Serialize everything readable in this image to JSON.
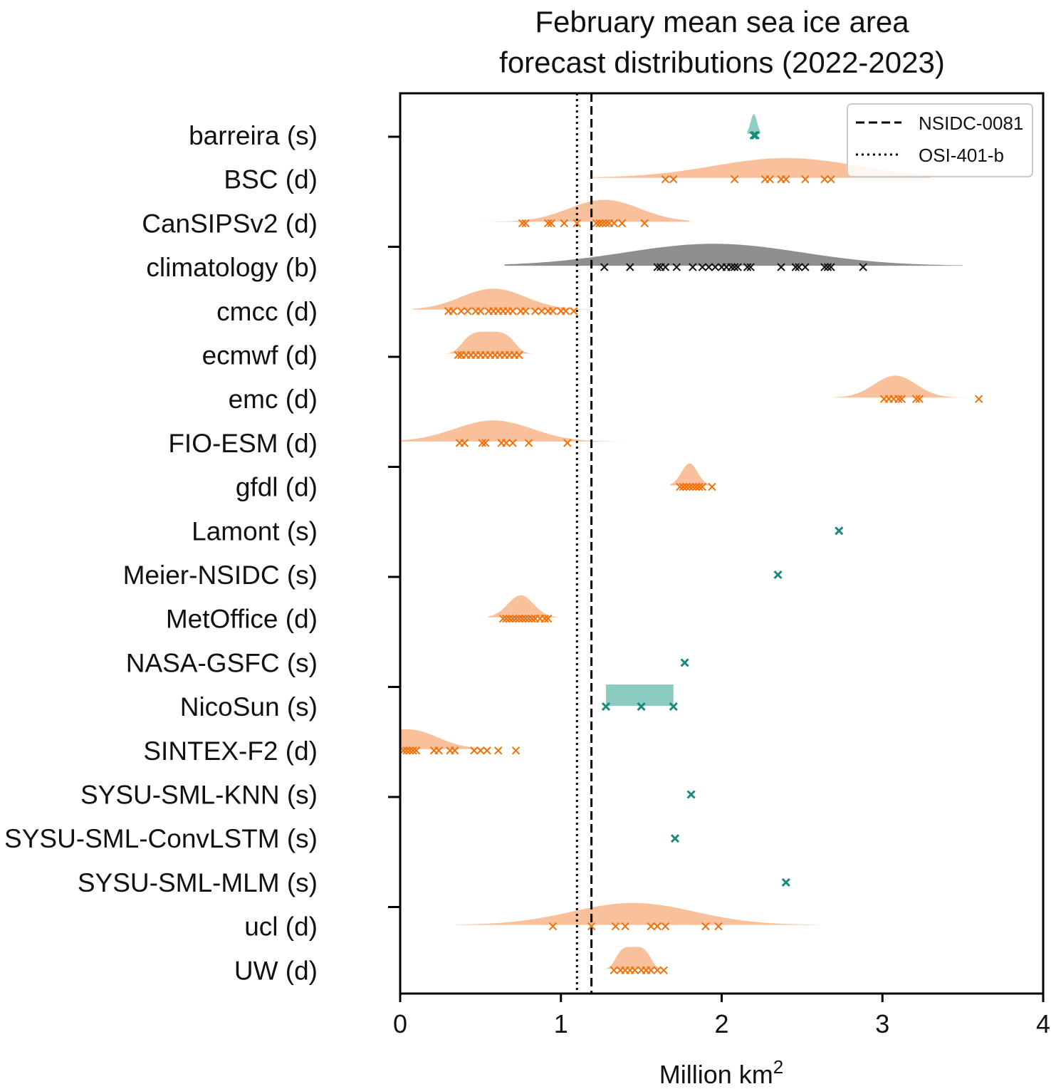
{
  "chart_data": {
    "type": "violin",
    "title_line1": "February mean sea ice area",
    "title_line2": "forecast distributions (2022-2023)",
    "xlabel": "Million km",
    "xlabel_sup": "2",
    "xlim": [
      0,
      4
    ],
    "xticks": [
      "0",
      "1",
      "2",
      "3",
      "4"
    ],
    "xtick_values": [
      0,
      1,
      2,
      3,
      4
    ],
    "reference_lines": [
      {
        "name": "NSIDC-0081",
        "x": 1.19,
        "style": "dashed"
      },
      {
        "name": "OSI-401-b",
        "x": 1.1,
        "style": "dotted"
      }
    ],
    "legend_position": "top-right",
    "colors": {
      "dynamical_fill": "#f9be96",
      "dynamical_marker": "#f0700a",
      "statistical_fill": "#8ccbc1",
      "statistical_marker": "#1a8a7c",
      "baseline_fill": "#8f8f8f",
      "baseline_marker": "#111111"
    },
    "series": [
      {
        "name": "barreira (s)",
        "kind": "s",
        "violin": {
          "center": 2.2,
          "width": 0.02,
          "height": 0.45
        },
        "points": [
          2.2,
          2.21
        ]
      },
      {
        "name": "BSC (d)",
        "kind": "d",
        "violin": {
          "center": 2.4,
          "width": 0.45,
          "height": 0.45,
          "range": [
            1.2,
            3.3
          ]
        },
        "points": [
          1.65,
          1.7,
          2.08,
          2.27,
          2.3,
          2.37,
          2.4,
          2.52,
          2.64,
          2.68
        ]
      },
      {
        "name": "CanSIPSv2 (d)",
        "kind": "d",
        "violin": {
          "center": 1.27,
          "width": 0.22,
          "height": 0.5,
          "range": [
            0.45,
            1.8
          ]
        },
        "points": [
          0.76,
          0.78,
          0.92,
          0.94,
          1.02,
          1.1,
          1.22,
          1.24,
          1.26,
          1.28,
          1.3,
          1.33,
          1.38,
          1.52
        ]
      },
      {
        "name": "climatology (b)",
        "kind": "b",
        "violin": {
          "center": 1.95,
          "width": 0.55,
          "height": 0.5,
          "range": [
            0.65,
            3.5
          ]
        },
        "points": [
          1.27,
          1.43,
          1.6,
          1.62,
          1.65,
          1.72,
          1.82,
          1.88,
          1.92,
          1.96,
          2.0,
          2.03,
          2.06,
          2.08,
          2.1,
          2.16,
          2.18,
          2.37,
          2.46,
          2.48,
          2.52,
          2.64,
          2.66,
          2.68,
          2.88
        ]
      },
      {
        "name": "cmcc (d)",
        "kind": "d",
        "violin": {
          "center": 0.58,
          "width": 0.2,
          "height": 0.48,
          "range": [
            0.08,
            1.3
          ]
        },
        "points": [
          0.3,
          0.33,
          0.38,
          0.42,
          0.47,
          0.5,
          0.55,
          0.58,
          0.61,
          0.64,
          0.67,
          0.7,
          0.75,
          0.78,
          0.84,
          0.88,
          0.92,
          0.95,
          1.0,
          1.03,
          1.08
        ]
      },
      {
        "name": "ecmwf (d)",
        "kind": "d",
        "violin": {
          "center": 0.55,
          "width": 0.15,
          "height": 0.5,
          "range": [
            0.22,
            0.88
          ],
          "plateau": true
        },
        "points": [
          0.36,
          0.38,
          0.41,
          0.44,
          0.47,
          0.5,
          0.53,
          0.56,
          0.59,
          0.62,
          0.65,
          0.68,
          0.71,
          0.74
        ]
      },
      {
        "name": "emc (d)",
        "kind": "d",
        "violin": {
          "center": 3.08,
          "width": 0.13,
          "height": 0.5,
          "range": [
            2.7,
            3.9
          ]
        },
        "points": [
          3.01,
          3.04,
          3.07,
          3.1,
          3.12,
          3.21,
          3.23,
          3.6
        ]
      },
      {
        "name": "FIO-ESM (d)",
        "kind": "d",
        "violin": {
          "center": 0.58,
          "width": 0.24,
          "height": 0.48,
          "range": [
            0.0,
            1.4
          ]
        },
        "points": [
          0.37,
          0.4,
          0.51,
          0.53,
          0.63,
          0.66,
          0.7,
          0.8,
          1.04
        ]
      },
      {
        "name": "gfdl (d)",
        "kind": "d",
        "violin": {
          "center": 1.8,
          "width": 0.05,
          "height": 0.5,
          "range": [
            1.68,
            1.98
          ]
        },
        "points": [
          1.74,
          1.76,
          1.78,
          1.8,
          1.82,
          1.84,
          1.86,
          1.88,
          1.94
        ]
      },
      {
        "name": "Lamont (s)",
        "kind": "s",
        "points": [
          2.73
        ]
      },
      {
        "name": "Meier-NSIDC (s)",
        "kind": "s",
        "points": [
          2.35
        ]
      },
      {
        "name": "MetOffice (d)",
        "kind": "d",
        "violin": {
          "center": 0.75,
          "width": 0.08,
          "height": 0.5,
          "range": [
            0.55,
            0.98
          ]
        },
        "points": [
          0.64,
          0.66,
          0.68,
          0.7,
          0.72,
          0.74,
          0.76,
          0.78,
          0.8,
          0.82,
          0.84,
          0.87,
          0.9,
          0.92
        ]
      },
      {
        "name": "NASA-GSFC (s)",
        "kind": "s",
        "points": [
          1.77
        ]
      },
      {
        "name": "NicoSun (s)",
        "kind": "s",
        "box": [
          1.28,
          1.7
        ],
        "points": [
          1.28,
          1.5,
          1.7
        ]
      },
      {
        "name": "SINTEX-F2 (d)",
        "kind": "d",
        "violin": {
          "center": 0.05,
          "width": 0.18,
          "height": 0.45,
          "range": [
            0.0,
            1.0
          ],
          "halfLeft": true
        },
        "points": [
          0.02,
          0.04,
          0.06,
          0.08,
          0.1,
          0.21,
          0.24,
          0.31,
          0.34,
          0.46,
          0.5,
          0.54,
          0.61,
          0.72
        ]
      },
      {
        "name": "SYSU-SML-KNN (s)",
        "kind": "s",
        "points": [
          1.81
        ]
      },
      {
        "name": "SYSU-SML-ConvLSTM (s)",
        "kind": "s",
        "points": [
          1.71
        ]
      },
      {
        "name": "SYSU-SML-MLM (s)",
        "kind": "s",
        "points": [
          2.4
        ]
      },
      {
        "name": "ucl (d)",
        "kind": "d",
        "violin": {
          "center": 1.45,
          "width": 0.38,
          "height": 0.5,
          "range": [
            0.35,
            2.6
          ]
        },
        "points": [
          0.95,
          1.19,
          1.34,
          1.4,
          1.56,
          1.6,
          1.65,
          1.9,
          1.98
        ]
      },
      {
        "name": "UW (d)",
        "kind": "d",
        "violin": {
          "center": 1.45,
          "width": 0.1,
          "height": 0.5,
          "range": [
            1.2,
            1.8
          ],
          "plateau": true
        },
        "points": [
          1.33,
          1.37,
          1.4,
          1.43,
          1.46,
          1.5,
          1.53,
          1.56,
          1.6,
          1.64
        ]
      }
    ]
  }
}
